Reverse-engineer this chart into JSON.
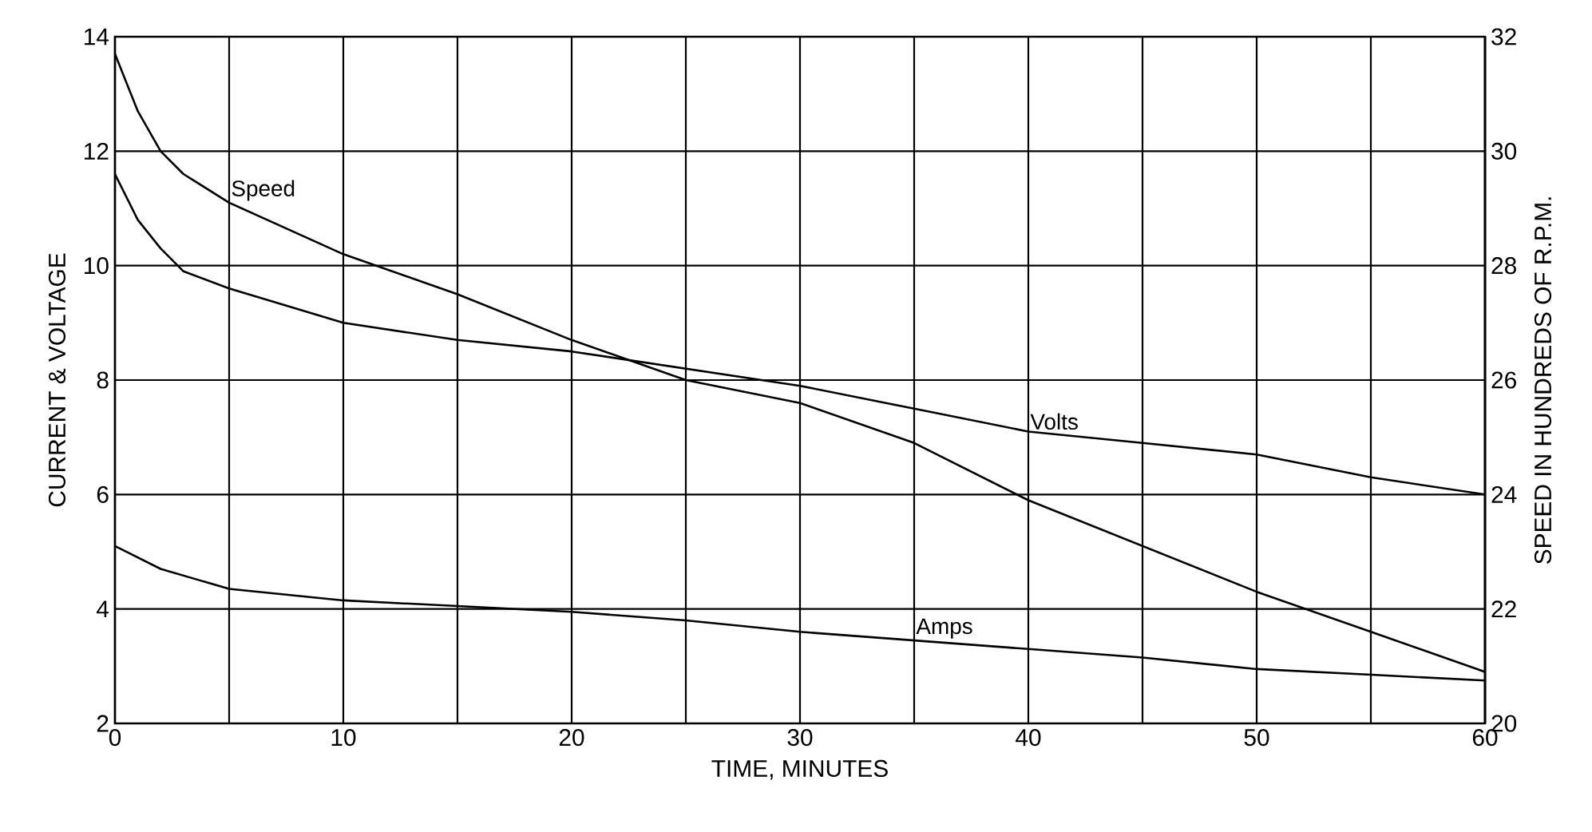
{
  "chart_data": {
    "type": "line",
    "xlabel": "TIME, MINUTES",
    "ylabel": "CURRENT & VOLTAGE",
    "y2label": "SPEED IN HUNDREDS OF R.P.M.",
    "xlim": [
      0,
      60
    ],
    "ylim": [
      2,
      14
    ],
    "y2lim": [
      20,
      32
    ],
    "xticks": [
      0,
      {
        "value": 5,
        "label": null
      },
      10,
      {
        "value": 15,
        "label": null
      },
      20,
      {
        "value": 25,
        "label": null
      },
      30,
      {
        "value": 35,
        "label": null
      },
      40,
      {
        "value": 45,
        "label": null
      },
      50,
      {
        "value": 55,
        "label": null
      },
      60
    ],
    "yticks": [
      2,
      4,
      6,
      8,
      10,
      12,
      14
    ],
    "y2ticks": [
      20,
      22,
      24,
      26,
      28,
      30,
      32
    ],
    "grid": true,
    "marker": "none",
    "line_style": "solid",
    "series": [
      {
        "name": "Speed",
        "color": "#000000",
        "axis": "y2",
        "x": [
          0,
          1,
          2,
          3,
          5,
          10,
          15,
          20,
          25,
          30,
          35,
          40,
          45,
          50,
          55,
          60
        ],
        "values": [
          31.7,
          30.7,
          30.0,
          29.6,
          29.1,
          28.2,
          27.5,
          26.7,
          26.0,
          25.6,
          24.9,
          23.9,
          23.1,
          22.3,
          21.6,
          20.9
        ]
      },
      {
        "name": "Volts",
        "color": "#000000",
        "x": [
          0,
          1,
          2,
          3,
          5,
          10,
          15,
          20,
          25,
          30,
          35,
          40,
          45,
          50,
          55,
          60
        ],
        "values": [
          11.6,
          10.8,
          10.3,
          9.9,
          9.6,
          9.0,
          8.7,
          8.5,
          8.2,
          7.9,
          7.5,
          7.1,
          6.9,
          6.7,
          6.3,
          6.0
        ]
      },
      {
        "name": "Amps",
        "color": "#000000",
        "x": [
          0,
          2,
          5,
          10,
          15,
          20,
          25,
          30,
          35,
          40,
          45,
          50,
          55,
          60
        ],
        "values": [
          5.1,
          4.7,
          4.35,
          4.15,
          4.05,
          3.95,
          3.8,
          3.6,
          3.45,
          3.3,
          3.15,
          2.95,
          2.85,
          2.75
        ]
      }
    ]
  }
}
